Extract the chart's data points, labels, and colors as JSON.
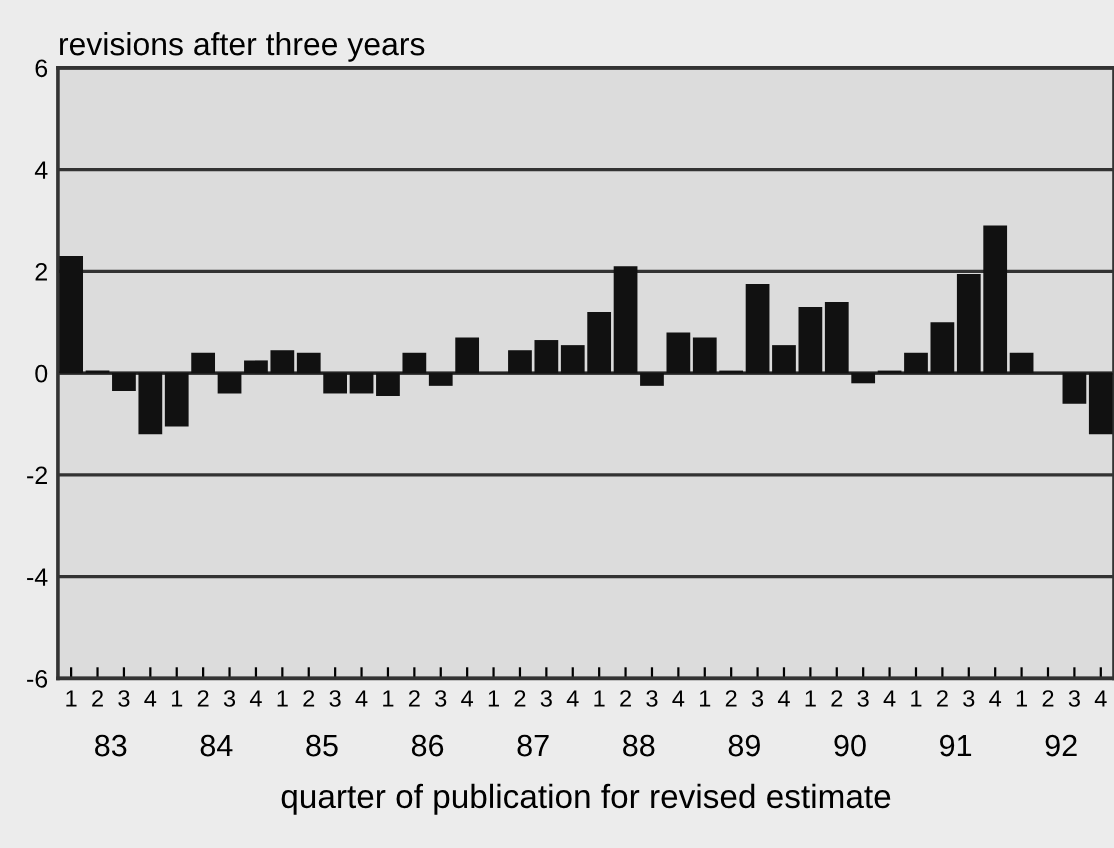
{
  "chart_data": {
    "type": "bar",
    "title": "revisions after three years",
    "xlabel": "quarter of publication for revised estimate",
    "categories": [
      "1",
      "2",
      "3",
      "4",
      "1",
      "2",
      "3",
      "4",
      "1",
      "2",
      "3",
      "4",
      "1",
      "2",
      "3",
      "4",
      "1",
      "2",
      "3",
      "4",
      "1",
      "2",
      "3",
      "4",
      "1",
      "2",
      "3",
      "4",
      "1",
      "2",
      "3",
      "4",
      "1",
      "2",
      "3",
      "4",
      "1",
      "2",
      "3",
      "4"
    ],
    "values": [
      2.3,
      0.05,
      -0.35,
      -1.2,
      -1.05,
      0.4,
      -0.4,
      0.25,
      0.45,
      0.4,
      -0.4,
      -0.4,
      -0.45,
      0.4,
      -0.25,
      0.7,
      0,
      0.45,
      0.65,
      0.55,
      1.2,
      2.1,
      -0.25,
      0.8,
      0.7,
      0.05,
      1.75,
      0.55,
      1.3,
      1.4,
      -0.2,
      0.05,
      0.4,
      1.0,
      1.95,
      2.9,
      0.4,
      0,
      -0.6,
      -1.2
    ],
    "color": "#111111",
    "annotations": [
      "83",
      "84",
      "85",
      "86",
      "87",
      "88",
      "89",
      "90",
      "91",
      "92"
    ],
    "ylim": [
      -6,
      6
    ],
    "yticks": [
      -6,
      -4,
      -2,
      0,
      2,
      4,
      6
    ],
    "grid": "y",
    "legend": false
  }
}
